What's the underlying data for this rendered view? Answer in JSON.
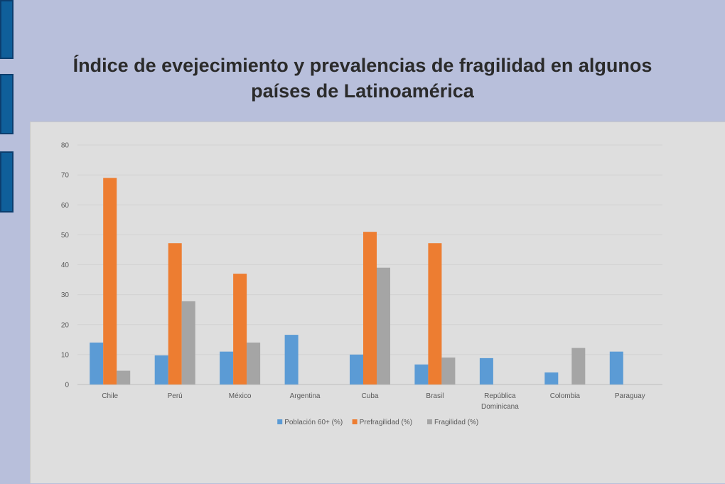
{
  "slide": {
    "title_line1": "Índice de evejecimiento y prevalencias de fragilidad en algunos",
    "title_line2": "países de Latinoamérica"
  },
  "chart_data": {
    "type": "bar",
    "categories": [
      "Chile",
      "Perú",
      "México",
      "Argentina",
      "Cuba",
      "Brasil",
      "República Dominicana",
      "Colombia",
      "Paraguay"
    ],
    "category_label_lines": [
      [
        "Chile"
      ],
      [
        "Perú"
      ],
      [
        "México"
      ],
      [
        "Argentina"
      ],
      [
        "Cuba"
      ],
      [
        "Brasil"
      ],
      [
        "República",
        "Dominicana"
      ],
      [
        "Colombia"
      ],
      [
        "Paraguay"
      ]
    ],
    "series": [
      {
        "name": "Población 60+ (%)",
        "color": "#5b9bd5",
        "values": [
          14,
          9.7,
          11,
          16.6,
          10,
          6.7,
          8.8,
          4,
          11
        ]
      },
      {
        "name": "Prefragilidad (%)",
        "color": "#ed7d31",
        "values": [
          69,
          47.2,
          37,
          null,
          51,
          47.2,
          null,
          null,
          null
        ]
      },
      {
        "name": "Fragilidad (%)",
        "color": "#a5a5a5",
        "values": [
          4.6,
          27.8,
          14,
          null,
          39,
          9,
          null,
          12.2,
          null
        ]
      }
    ],
    "ylim": [
      0,
      80
    ],
    "yticks": [
      0,
      10,
      20,
      30,
      40,
      50,
      60,
      70,
      80
    ],
    "grid": true,
    "legend_position": "bottom",
    "title": "",
    "xlabel": "",
    "ylabel": ""
  }
}
